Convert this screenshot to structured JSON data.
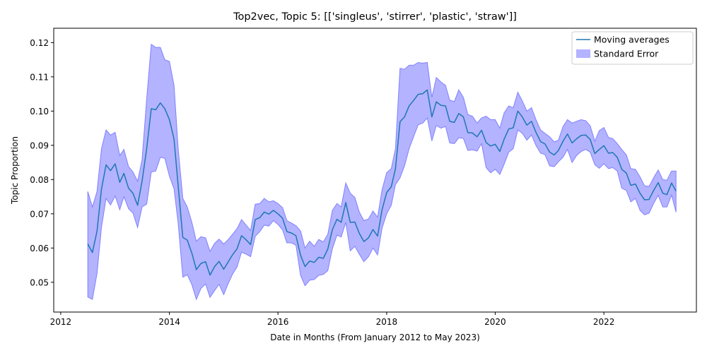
{
  "chart_data": {
    "type": "line",
    "title": "Top2vec, Topic 5: [['singleus', 'stirrer', 'plastic', 'straw']]",
    "xlabel": "Date in Months (From January 2012 to May 2023)",
    "ylabel": "Topic Proportion",
    "xlim": [
      "2011-11-15",
      "2023-09-15"
    ],
    "ylim": [
      0.0413,
      0.1242
    ],
    "x_ticks": [
      "2012-01-01",
      "2014-01-01",
      "2016-01-01",
      "2018-01-01",
      "2020-01-01",
      "2022-01-01"
    ],
    "x_tick_labels": [
      "2012",
      "2014",
      "2016",
      "2018",
      "2020",
      "2022"
    ],
    "y_ticks": [
      0.05,
      0.06,
      0.07,
      0.08,
      0.09,
      0.1,
      0.11,
      0.12
    ],
    "y_tick_labels": [
      "0.05",
      "0.06",
      "0.07",
      "0.08",
      "0.09",
      "0.10",
      "0.11",
      "0.12"
    ],
    "grid": false,
    "legend_position": "top-right",
    "colors": {
      "line": "#1f77b4",
      "band": "#8080ff"
    },
    "series": [
      {
        "name": "Moving averages",
        "kind": "line",
        "x": [
          "2012-07",
          "2012-08",
          "2012-09",
          "2012-10",
          "2012-11",
          "2012-12",
          "2013-01",
          "2013-02",
          "2013-03",
          "2013-04",
          "2013-05",
          "2013-06",
          "2013-07",
          "2013-08",
          "2013-09",
          "2013-10",
          "2013-11",
          "2013-12",
          "2014-01",
          "2014-02",
          "2014-03",
          "2014-04",
          "2014-05",
          "2014-06",
          "2014-07",
          "2014-08",
          "2014-09",
          "2014-10",
          "2014-11",
          "2014-12",
          "2015-01",
          "2015-02",
          "2015-03",
          "2015-04",
          "2015-05",
          "2015-06",
          "2015-07",
          "2015-08",
          "2015-09",
          "2015-10",
          "2015-11",
          "2015-12",
          "2016-01",
          "2016-02",
          "2016-03",
          "2016-04",
          "2016-05",
          "2016-06",
          "2016-07",
          "2016-08",
          "2016-09",
          "2016-10",
          "2016-11",
          "2016-12",
          "2017-01",
          "2017-02",
          "2017-03",
          "2017-04",
          "2017-05",
          "2017-06",
          "2017-07",
          "2017-08",
          "2017-09",
          "2017-10",
          "2017-11",
          "2017-12",
          "2018-01",
          "2018-02",
          "2018-03",
          "2018-04",
          "2018-05",
          "2018-06",
          "2018-07",
          "2018-08",
          "2018-09",
          "2018-10",
          "2018-11",
          "2018-12",
          "2019-01",
          "2019-02",
          "2019-03",
          "2019-04",
          "2019-05",
          "2019-06",
          "2019-07",
          "2019-08",
          "2019-09",
          "2019-10",
          "2019-11",
          "2019-12",
          "2020-01",
          "2020-02",
          "2020-03",
          "2020-04",
          "2020-05",
          "2020-06",
          "2020-07",
          "2020-08",
          "2020-09",
          "2020-10",
          "2020-11",
          "2020-12",
          "2021-01",
          "2021-02",
          "2021-03",
          "2021-04",
          "2021-05",
          "2021-06",
          "2021-07",
          "2021-08",
          "2021-09",
          "2021-10",
          "2021-11",
          "2021-12",
          "2022-01",
          "2022-02",
          "2022-03",
          "2022-04",
          "2022-05",
          "2022-06",
          "2022-07",
          "2022-08",
          "2022-09",
          "2022-10",
          "2022-11",
          "2022-12",
          "2023-01",
          "2023-02",
          "2023-03",
          "2023-04",
          "2023-05"
        ],
        "values": [
          0.0612,
          0.0587,
          0.0649,
          0.0772,
          0.0843,
          0.0826,
          0.0846,
          0.0792,
          0.0818,
          0.0775,
          0.076,
          0.0725,
          0.0795,
          0.089,
          0.1007,
          0.1004,
          0.1024,
          0.1007,
          0.0975,
          0.0918,
          0.0781,
          0.0631,
          0.0623,
          0.0585,
          0.0537,
          0.0555,
          0.056,
          0.0521,
          0.0546,
          0.0561,
          0.0538,
          0.056,
          0.058,
          0.0598,
          0.0636,
          0.0624,
          0.061,
          0.0683,
          0.0689,
          0.0705,
          0.0699,
          0.071,
          0.07,
          0.0687,
          0.0648,
          0.0644,
          0.0636,
          0.0579,
          0.0546,
          0.0562,
          0.0558,
          0.0573,
          0.057,
          0.0597,
          0.0654,
          0.0684,
          0.0675,
          0.0733,
          0.0675,
          0.0676,
          0.0643,
          0.0619,
          0.063,
          0.0654,
          0.0635,
          0.0712,
          0.0762,
          0.0779,
          0.0831,
          0.0969,
          0.0983,
          0.1015,
          0.1031,
          0.1049,
          0.1051,
          0.1062,
          0.0983,
          0.1027,
          0.1017,
          0.1015,
          0.097,
          0.0967,
          0.0993,
          0.0983,
          0.0937,
          0.0936,
          0.0925,
          0.0944,
          0.0908,
          0.0898,
          0.0903,
          0.0882,
          0.0918,
          0.0948,
          0.0951,
          0.1,
          0.0983,
          0.0959,
          0.097,
          0.0938,
          0.0911,
          0.0904,
          0.088,
          0.0872,
          0.0885,
          0.0912,
          0.0933,
          0.0907,
          0.0919,
          0.0929,
          0.093,
          0.0917,
          0.0876,
          0.0888,
          0.0899,
          0.0877,
          0.0879,
          0.0865,
          0.083,
          0.0819,
          0.0783,
          0.0787,
          0.076,
          0.0741,
          0.0742,
          0.0768,
          0.0791,
          0.076,
          0.0756,
          0.079,
          0.0766
        ]
      },
      {
        "name": "Standard Error",
        "kind": "band",
        "x": [
          "2012-07",
          "2012-08",
          "2012-09",
          "2012-10",
          "2012-11",
          "2012-12",
          "2013-01",
          "2013-02",
          "2013-03",
          "2013-04",
          "2013-05",
          "2013-06",
          "2013-07",
          "2013-08",
          "2013-09",
          "2013-10",
          "2013-11",
          "2013-12",
          "2014-01",
          "2014-02",
          "2014-03",
          "2014-04",
          "2014-05",
          "2014-06",
          "2014-07",
          "2014-08",
          "2014-09",
          "2014-10",
          "2014-11",
          "2014-12",
          "2015-01",
          "2015-02",
          "2015-03",
          "2015-04",
          "2015-05",
          "2015-06",
          "2015-07",
          "2015-08",
          "2015-09",
          "2015-10",
          "2015-11",
          "2015-12",
          "2016-01",
          "2016-02",
          "2016-03",
          "2016-04",
          "2016-05",
          "2016-06",
          "2016-07",
          "2016-08",
          "2016-09",
          "2016-10",
          "2016-11",
          "2016-12",
          "2017-01",
          "2017-02",
          "2017-03",
          "2017-04",
          "2017-05",
          "2017-06",
          "2017-07",
          "2017-08",
          "2017-09",
          "2017-10",
          "2017-11",
          "2017-12",
          "2018-01",
          "2018-02",
          "2018-03",
          "2018-04",
          "2018-05",
          "2018-06",
          "2018-07",
          "2018-08",
          "2018-09",
          "2018-10",
          "2018-11",
          "2018-12",
          "2019-01",
          "2019-02",
          "2019-03",
          "2019-04",
          "2019-05",
          "2019-06",
          "2019-07",
          "2019-08",
          "2019-09",
          "2019-10",
          "2019-11",
          "2019-12",
          "2020-01",
          "2020-02",
          "2020-03",
          "2020-04",
          "2020-05",
          "2020-06",
          "2020-07",
          "2020-08",
          "2020-09",
          "2020-10",
          "2020-11",
          "2020-12",
          "2021-01",
          "2021-02",
          "2021-03",
          "2021-04",
          "2021-05",
          "2021-06",
          "2021-07",
          "2021-08",
          "2021-09",
          "2021-10",
          "2021-11",
          "2021-12",
          "2022-01",
          "2022-02",
          "2022-03",
          "2022-04",
          "2022-05",
          "2022-06",
          "2022-07",
          "2022-08",
          "2022-09",
          "2022-10",
          "2022-11",
          "2022-12",
          "2023-01",
          "2023-02",
          "2023-03",
          "2023-04",
          "2023-05"
        ],
        "upper": [
          0.0765,
          0.072,
          0.0765,
          0.089,
          0.0945,
          0.093,
          0.0938,
          0.087,
          0.0888,
          0.0838,
          0.0822,
          0.0795,
          0.0858,
          0.1035,
          0.1195,
          0.1186,
          0.1186,
          0.115,
          0.1145,
          0.1075,
          0.089,
          0.0745,
          0.072,
          0.0675,
          0.062,
          0.0633,
          0.063,
          0.059,
          0.0614,
          0.0626,
          0.0612,
          0.0625,
          0.064,
          0.0657,
          0.0683,
          0.0667,
          0.0651,
          0.0728,
          0.073,
          0.0745,
          0.0735,
          0.0738,
          0.073,
          0.0718,
          0.068,
          0.0673,
          0.0665,
          0.065,
          0.06,
          0.062,
          0.0605,
          0.0625,
          0.0618,
          0.064,
          0.071,
          0.073,
          0.072,
          0.079,
          0.076,
          0.0748,
          0.0705,
          0.068,
          0.0685,
          0.0708,
          0.069,
          0.077,
          0.082,
          0.0832,
          0.089,
          0.1125,
          0.1122,
          0.1134,
          0.1134,
          0.1142,
          0.114,
          0.1142,
          0.104,
          0.1098,
          0.1085,
          0.1075,
          0.1032,
          0.1028,
          0.1062,
          0.104,
          0.099,
          0.0985,
          0.0965,
          0.098,
          0.0985,
          0.0975,
          0.0975,
          0.095,
          0.0995,
          0.1015,
          0.101,
          0.1055,
          0.103,
          0.1,
          0.101,
          0.0975,
          0.0945,
          0.0935,
          0.0925,
          0.091,
          0.0915,
          0.0955,
          0.0975,
          0.0965,
          0.097,
          0.0975,
          0.0972,
          0.0957,
          0.0912,
          0.0943,
          0.0952,
          0.0923,
          0.092,
          0.0905,
          0.0888,
          0.0872,
          0.0832,
          0.083,
          0.0808,
          0.0782,
          0.078,
          0.0805,
          0.0828,
          0.08,
          0.0798,
          0.0825,
          0.0825
        ]
      },
      {
        "name": "",
        "kind": "band-lower",
        "lower": [
          0.0457,
          0.045,
          0.0525,
          0.066,
          0.0745,
          0.0726,
          0.0752,
          0.0712,
          0.075,
          0.0715,
          0.0702,
          0.066,
          0.072,
          0.0728,
          0.0822,
          0.0825,
          0.0865,
          0.0862,
          0.081,
          0.0773,
          0.0672,
          0.0515,
          0.0522,
          0.0493,
          0.045,
          0.0482,
          0.0495,
          0.0456,
          0.0476,
          0.0494,
          0.0464,
          0.0497,
          0.0523,
          0.0545,
          0.0588,
          0.0582,
          0.0575,
          0.0634,
          0.0648,
          0.0667,
          0.0664,
          0.068,
          0.0669,
          0.0653,
          0.0615,
          0.0615,
          0.0608,
          0.052,
          0.049,
          0.0506,
          0.0508,
          0.052,
          0.0523,
          0.0534,
          0.0598,
          0.0638,
          0.0632,
          0.0675,
          0.0592,
          0.0605,
          0.0582,
          0.056,
          0.0575,
          0.06,
          0.058,
          0.0658,
          0.07,
          0.0725,
          0.0785,
          0.0805,
          0.084,
          0.089,
          0.0925,
          0.096,
          0.0965,
          0.098,
          0.0913,
          0.0958,
          0.095,
          0.0955,
          0.0907,
          0.0905,
          0.0922,
          0.092,
          0.0885,
          0.0887,
          0.0883,
          0.0905,
          0.0835,
          0.082,
          0.083,
          0.0815,
          0.0845,
          0.088,
          0.089,
          0.0945,
          0.0935,
          0.0915,
          0.093,
          0.09,
          0.0877,
          0.0873,
          0.084,
          0.0838,
          0.0852,
          0.0865,
          0.0888,
          0.085,
          0.087,
          0.0882,
          0.0888,
          0.088,
          0.0843,
          0.0833,
          0.0846,
          0.0832,
          0.0835,
          0.0825,
          0.0775,
          0.0768,
          0.0735,
          0.0745,
          0.071,
          0.0697,
          0.0702,
          0.073,
          0.0754,
          0.072,
          0.072,
          0.0755,
          0.0705
        ]
      }
    ],
    "legend": [
      {
        "label": "Moving averages",
        "kind": "line",
        "color": "#1f77b4"
      },
      {
        "label": "Standard Error",
        "kind": "patch",
        "color": "#8080ff"
      }
    ]
  }
}
